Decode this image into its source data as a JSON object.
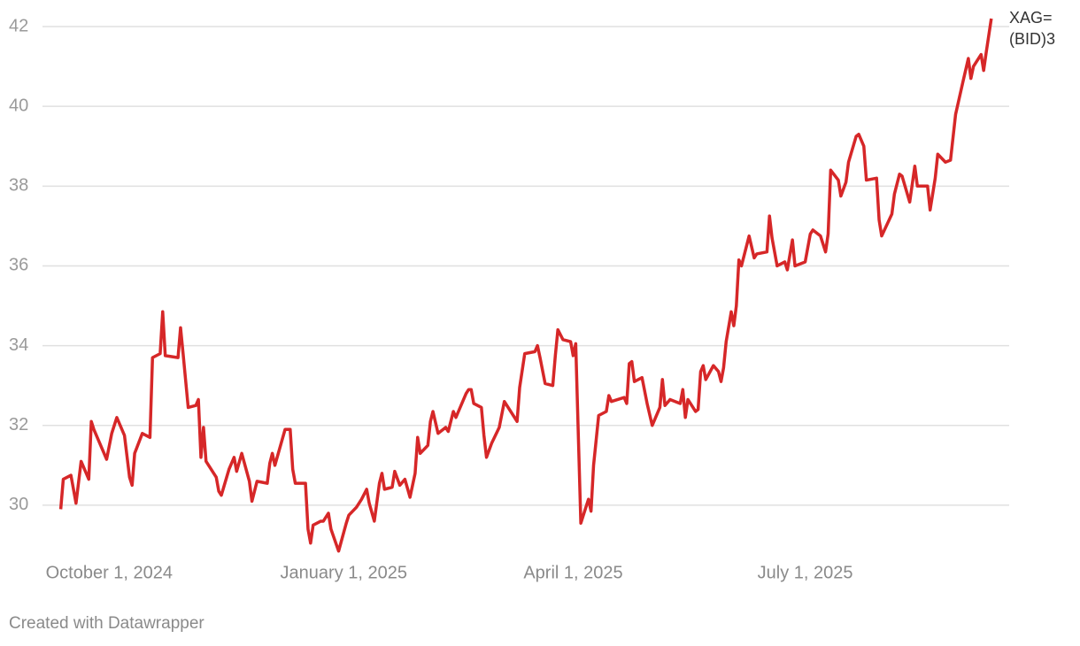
{
  "chart_data": {
    "type": "line",
    "source": "Created with Datawrapper",
    "x": [
      "2024-09-12",
      "2024-09-13",
      "2024-09-16",
      "2024-09-18",
      "2024-09-20",
      "2024-09-23",
      "2024-09-24",
      "2024-09-25",
      "2024-09-27",
      "2024-09-30",
      "2024-10-02",
      "2024-10-04",
      "2024-10-07",
      "2024-10-09",
      "2024-10-10",
      "2024-10-11",
      "2024-10-14",
      "2024-10-17",
      "2024-10-18",
      "2024-10-21",
      "2024-10-22",
      "2024-10-23",
      "2024-10-28",
      "2024-10-29",
      "2024-10-30",
      "2024-11-01",
      "2024-11-04",
      "2024-11-05",
      "2024-11-06",
      "2024-11-07",
      "2024-11-08",
      "2024-11-12",
      "2024-11-13",
      "2024-11-14",
      "2024-11-17",
      "2024-11-19",
      "2024-11-20",
      "2024-11-22",
      "2024-11-25",
      "2024-11-26",
      "2024-11-28",
      "2024-12-02",
      "2024-12-03",
      "2024-12-04",
      "2024-12-05",
      "2024-12-09",
      "2024-12-11",
      "2024-12-12",
      "2024-12-13",
      "2024-12-17",
      "2024-12-18",
      "2024-12-19",
      "2024-12-20",
      "2024-12-23",
      "2024-12-24",
      "2024-12-26",
      "2024-12-27",
      "2024-12-30",
      "2025-01-02",
      "2025-01-03",
      "2025-01-06",
      "2025-01-08",
      "2025-01-10",
      "2025-01-11",
      "2025-01-13",
      "2025-01-15",
      "2025-01-16",
      "2025-01-17",
      "2025-01-20",
      "2025-01-21",
      "2025-01-23",
      "2025-01-25",
      "2025-01-27",
      "2025-01-29",
      "2025-01-30",
      "2025-01-31",
      "2025-02-03",
      "2025-02-04",
      "2025-02-05",
      "2025-02-07",
      "2025-02-10",
      "2025-02-11",
      "2025-02-13",
      "2025-02-14",
      "2025-02-18",
      "2025-02-19",
      "2025-02-20",
      "2025-02-21",
      "2025-02-24",
      "2025-02-25",
      "2025-02-26",
      "2025-02-28",
      "2025-03-03",
      "2025-03-05",
      "2025-03-10",
      "2025-03-11",
      "2025-03-13",
      "2025-03-17",
      "2025-03-18",
      "2025-03-19",
      "2025-03-21",
      "2025-03-24",
      "2025-03-25",
      "2025-03-26",
      "2025-03-28",
      "2025-03-31",
      "2025-04-01",
      "2025-04-02",
      "2025-04-04",
      "2025-04-07",
      "2025-04-08",
      "2025-04-09",
      "2025-04-11",
      "2025-04-14",
      "2025-04-15",
      "2025-04-16",
      "2025-04-21",
      "2025-04-22",
      "2025-04-23",
      "2025-04-24",
      "2025-04-25",
      "2025-04-28",
      "2025-04-30",
      "2025-05-02",
      "2025-05-05",
      "2025-05-06",
      "2025-05-07",
      "2025-05-09",
      "2025-05-13",
      "2025-05-14",
      "2025-05-15",
      "2025-05-16",
      "2025-05-19",
      "2025-05-20",
      "2025-05-21",
      "2025-05-22",
      "2025-05-23",
      "2025-05-26",
      "2025-05-28",
      "2025-05-29",
      "2025-05-30",
      "2025-05-31",
      "2025-06-02",
      "2025-06-03",
      "2025-06-04",
      "2025-06-05",
      "2025-06-06",
      "2025-06-09",
      "2025-06-11",
      "2025-06-12",
      "2025-06-16",
      "2025-06-17",
      "2025-06-18",
      "2025-06-20",
      "2025-06-23",
      "2025-06-24",
      "2025-06-26",
      "2025-06-27",
      "2025-07-01",
      "2025-07-03",
      "2025-07-04",
      "2025-07-07",
      "2025-07-09",
      "2025-07-10",
      "2025-07-11",
      "2025-07-14",
      "2025-07-15",
      "2025-07-17",
      "2025-07-18",
      "2025-07-21",
      "2025-07-22",
      "2025-07-24",
      "2025-07-25",
      "2025-07-29",
      "2025-07-30",
      "2025-07-31",
      "2025-08-04",
      "2025-08-05",
      "2025-08-07",
      "2025-08-08",
      "2025-08-11",
      "2025-08-13",
      "2025-08-14",
      "2025-08-18",
      "2025-08-19",
      "2025-08-21",
      "2025-08-22",
      "2025-08-25",
      "2025-08-27",
      "2025-08-29",
      "2025-09-01",
      "2025-09-03",
      "2025-09-04",
      "2025-09-05",
      "2025-09-08",
      "2025-09-09",
      "2025-09-10",
      "2025-09-12"
    ],
    "series": [
      {
        "name": "XAG=(BID)3",
        "color": "#d62728",
        "values": [
          29.9,
          30.65,
          30.75,
          30.05,
          31.1,
          30.65,
          32.1,
          31.9,
          31.6,
          31.15,
          31.8,
          32.2,
          31.75,
          30.7,
          30.5,
          31.3,
          31.8,
          31.7,
          33.7,
          33.8,
          34.85,
          33.75,
          33.7,
          34.45,
          33.8,
          32.45,
          32.5,
          32.65,
          31.2,
          31.95,
          31.1,
          30.7,
          30.35,
          30.25,
          30.9,
          31.2,
          30.85,
          31.3,
          30.6,
          30.1,
          30.6,
          30.55,
          31.05,
          31.3,
          31.0,
          31.9,
          31.9,
          30.9,
          30.55,
          30.55,
          29.4,
          29.05,
          29.5,
          29.6,
          29.6,
          29.8,
          29.4,
          28.85,
          29.55,
          29.75,
          29.95,
          30.15,
          30.4,
          30.05,
          29.6,
          30.55,
          30.8,
          30.4,
          30.45,
          30.85,
          30.5,
          30.65,
          30.2,
          30.8,
          31.7,
          31.3,
          31.5,
          32.1,
          32.35,
          31.8,
          31.95,
          31.85,
          32.35,
          32.2,
          32.8,
          32.9,
          32.9,
          32.55,
          32.45,
          31.75,
          31.2,
          31.55,
          31.95,
          32.6,
          32.1,
          32.95,
          33.8,
          33.85,
          34.0,
          33.7,
          33.05,
          33.0,
          33.75,
          34.4,
          34.15,
          34.1,
          33.75,
          34.05,
          29.55,
          30.15,
          29.85,
          31.0,
          32.25,
          32.35,
          32.75,
          32.6,
          32.7,
          32.55,
          33.55,
          33.6,
          33.1,
          33.2,
          32.55,
          32.0,
          32.45,
          33.15,
          32.5,
          32.65,
          32.55,
          32.9,
          32.2,
          32.65,
          32.35,
          32.4,
          33.35,
          33.5,
          33.15,
          33.5,
          33.35,
          33.1,
          33.45,
          34.1,
          34.85,
          34.5,
          35.0,
          36.15,
          36.0,
          36.75,
          36.2,
          36.3,
          36.35,
          37.25,
          36.7,
          36.0,
          36.1,
          35.9,
          36.65,
          36.0,
          36.1,
          36.8,
          36.9,
          36.75,
          36.35,
          36.8,
          38.4,
          38.15,
          37.75,
          38.1,
          38.6,
          39.25,
          39.3,
          39.0,
          38.15,
          38.2,
          37.15,
          36.75,
          37.3,
          37.8,
          38.3,
          38.25,
          37.6,
          38.5,
          38.0,
          38.0,
          37.4,
          38.2,
          38.8,
          38.6,
          38.65,
          39.8,
          40.65,
          41.2,
          40.7,
          41.0,
          41.3,
          40.9,
          41.35,
          42.2
        ]
      }
    ],
    "xlim": [
      "2024-09-12",
      "2025-09-12"
    ],
    "xticks": [
      {
        "value": "2024-10-01",
        "label": "October 1, 2024"
      },
      {
        "value": "2025-01-01",
        "label": "January 1, 2025"
      },
      {
        "value": "2025-04-01",
        "label": "April 1, 2025"
      },
      {
        "value": "2025-07-01",
        "label": "July 1, 2025"
      }
    ],
    "ylim": [
      28.8,
      42.2
    ],
    "yticks": [
      30,
      32,
      34,
      36,
      38,
      40,
      42
    ],
    "grid": true
  }
}
